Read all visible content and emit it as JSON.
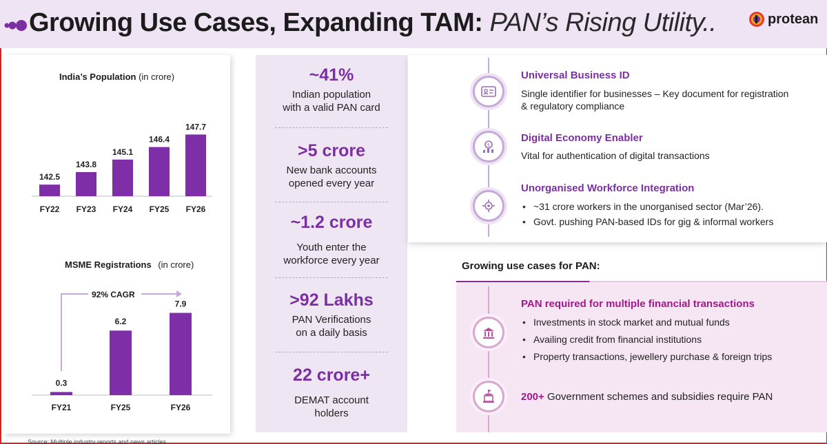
{
  "header": {
    "title_main": "Growing Use Cases, Expanding TAM:",
    "title_italic": "PAN’s Rising Utility..",
    "brand": "protean"
  },
  "colors": {
    "accent": "#7b2fa0",
    "bar": "#7e2fa8",
    "magenta": "#a0188a",
    "header_bg": "#efe4f4"
  },
  "population_chart": {
    "title": "India’s Population",
    "unit": "(in crore)"
  },
  "msme_chart": {
    "title": "MSME Registrations",
    "unit": "(in crore)",
    "cagr_label": "92% CAGR"
  },
  "chart_data": [
    {
      "type": "bar",
      "title": "India’s Population (in crore)",
      "categories": [
        "FY22",
        "FY23",
        "FY24",
        "FY25",
        "FY26"
      ],
      "values": [
        142.5,
        143.8,
        145.1,
        146.4,
        147.7
      ],
      "data_labels": [
        "142.5",
        "143.8",
        "145.1",
        "146.4",
        "147.7"
      ]
    },
    {
      "type": "bar",
      "title": "MSME Registrations (in crore)",
      "categories": [
        "FY21",
        "FY25",
        "FY26"
      ],
      "values": [
        0.3,
        6.2,
        7.9
      ],
      "data_labels": [
        "0.3",
        "6.2",
        "7.9"
      ],
      "annotations": [
        "92% CAGR"
      ],
      "ylim": [
        0,
        8
      ]
    }
  ],
  "stats": [
    {
      "value": "~41%",
      "desc1": "Indian population",
      "desc2": "with a valid PAN card"
    },
    {
      "value": ">5 crore",
      "desc1": "New bank accounts",
      "desc2": "opened every year"
    },
    {
      "value": "~1.2 crore",
      "desc1": "Youth enter the",
      "desc2": "workforce every year"
    },
    {
      "value": ">92 Lakhs",
      "desc1": "PAN Verifications",
      "desc2": "on a daily basis"
    },
    {
      "value": "22 crore+",
      "desc1": "DEMAT account",
      "desc2": "holders"
    }
  ],
  "utility_items": [
    {
      "title": "Universal Business ID",
      "text1": "Single identifier for businesses – Key document for registration",
      "text2": "& regulatory compliance",
      "icon": "id-card-icon"
    },
    {
      "title": "Digital Economy Enabler",
      "text1": "Vital for authentication of digital transactions",
      "icon": "digital-coin-icon"
    },
    {
      "title": "Unorganised Workforce Integration",
      "bullets": [
        "~31 crore workers in the unorganised sector (Mar’26).",
        "Govt. pushing PAN-based IDs for gig & informal workers"
      ],
      "icon": "workforce-gear-icon"
    }
  ],
  "use_cases": {
    "title": "Growing use cases for PAN:",
    "items": [
      {
        "title": "PAN required for multiple financial transactions",
        "bullets": [
          "Investments in stock market and mutual funds",
          "Availing credit from financial institutions",
          "Property transactions, jewellery purchase & foreign trips"
        ],
        "icon": "bank-coins-icon"
      },
      {
        "strong": "200+",
        "text": "Government schemes and subsidies require PAN",
        "icon": "government-building-icon"
      }
    ]
  },
  "source": "Source: Multiple industry reports and news articles"
}
